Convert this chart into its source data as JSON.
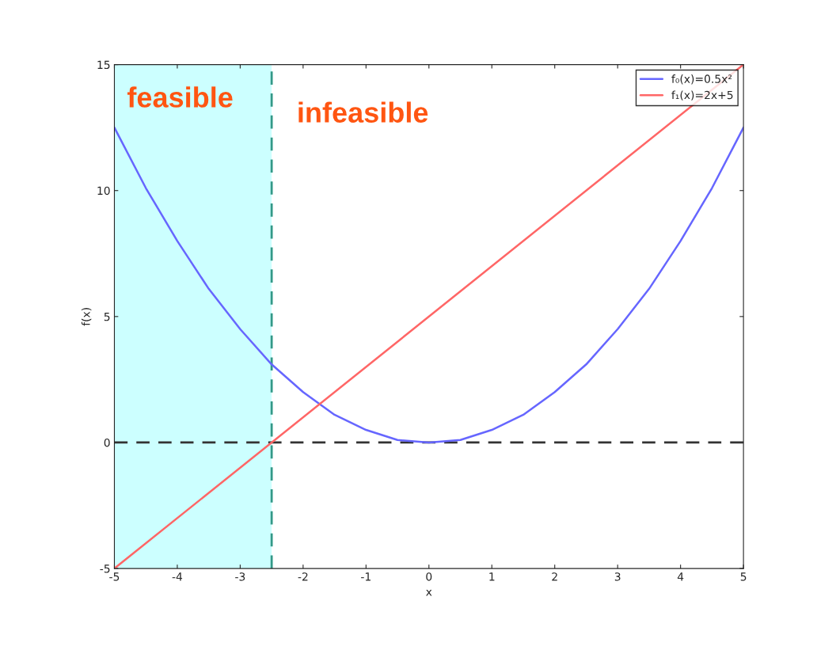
{
  "chart_data": {
    "type": "line",
    "xlabel": "x",
    "ylabel": "f(x)",
    "x": [
      -5,
      -4.5,
      -4,
      -3.5,
      -3,
      -2.5,
      -2,
      -1.5,
      -1,
      -0.5,
      0,
      0.5,
      1,
      1.5,
      2,
      2.5,
      3,
      3.5,
      4,
      4.5,
      5
    ],
    "series": [
      {
        "name": "f₀(x)=0.5x²",
        "color": "#6666ff",
        "values": [
          12.5,
          10.1,
          8,
          6.1,
          4.5,
          3.1,
          2,
          1.1,
          0.5,
          0.1,
          0,
          0.1,
          0.5,
          1.1,
          2,
          3.1,
          4.5,
          6.1,
          8,
          10.1,
          12.5
        ]
      },
      {
        "name": "f₁(x)=2x+5",
        "color": "#ff6666",
        "x": [
          -5,
          5
        ],
        "values": [
          -5,
          15
        ]
      }
    ],
    "xlim": [
      -5,
      5
    ],
    "ylim": [
      -5,
      15
    ],
    "xticks": [
      -5,
      -4,
      -3,
      -2,
      -1,
      0,
      1,
      2,
      3,
      4,
      5
    ],
    "yticks": [
      -5,
      0,
      5,
      10,
      15
    ],
    "ref_lines": [
      {
        "axis": "y",
        "value": 0,
        "color": "#333333",
        "line_style": "dashed"
      },
      {
        "axis": "x",
        "value": -2.5,
        "color": "#339988",
        "line_style": "dashed"
      }
    ],
    "bands": [
      {
        "axis": "x",
        "from": -5,
        "to": -2.5,
        "color": "#ccffff"
      }
    ],
    "annotations": [
      "feasible",
      "infeasible"
    ],
    "grid": false,
    "legend": "top right",
    "marker": "none",
    "line_style": "solid"
  }
}
